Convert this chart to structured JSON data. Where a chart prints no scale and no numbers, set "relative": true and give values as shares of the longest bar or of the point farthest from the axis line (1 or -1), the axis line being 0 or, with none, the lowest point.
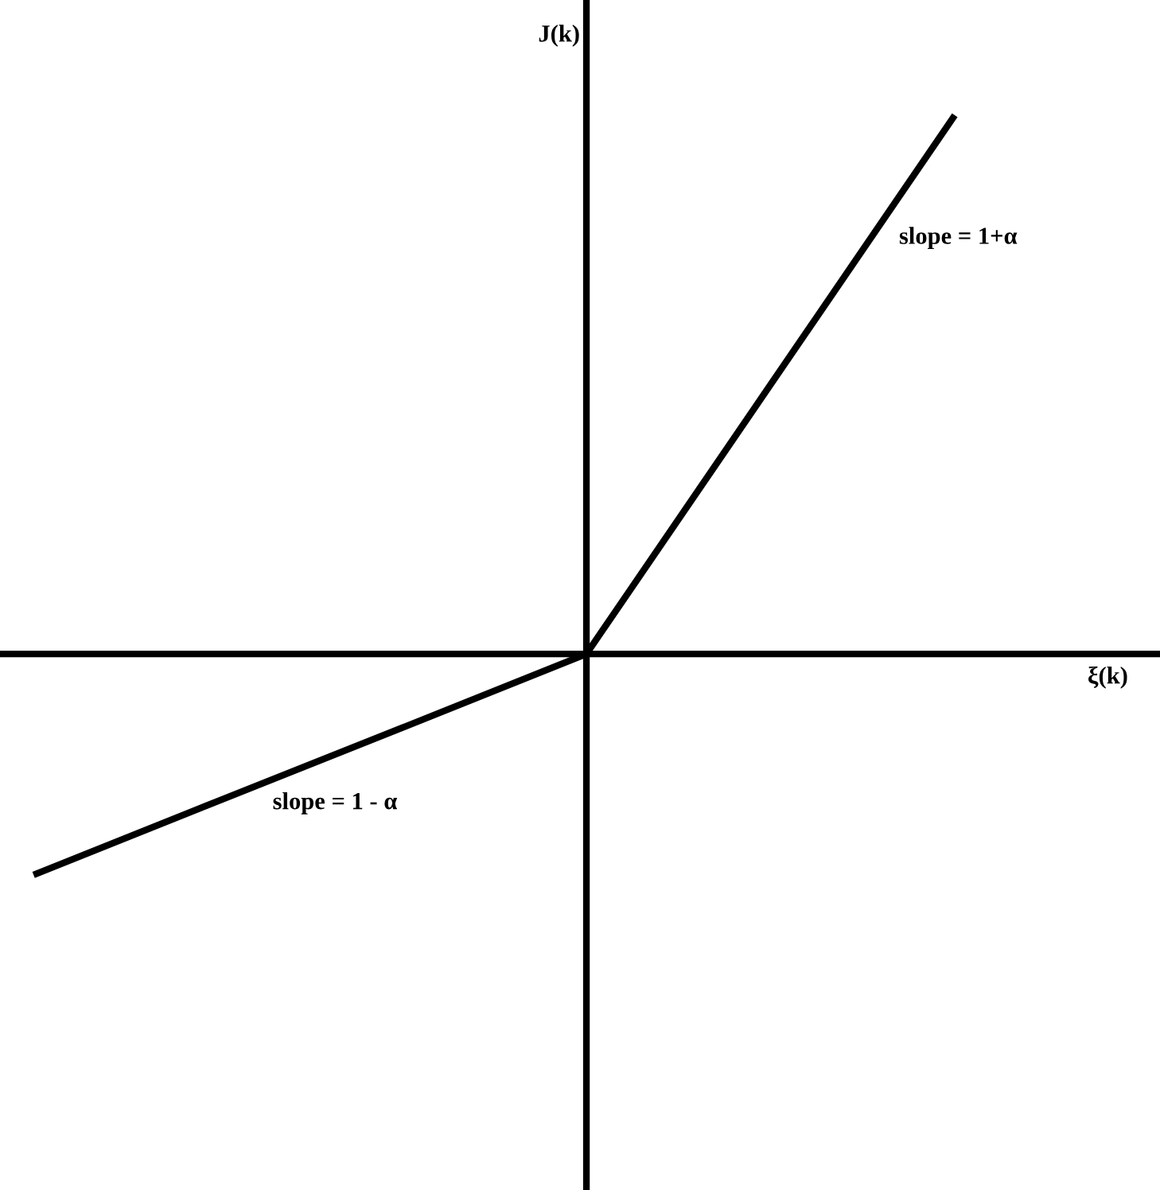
{
  "chart_data": {
    "type": "line",
    "relative": true,
    "xlabel": "ξ(k)",
    "ylabel": "J(k)",
    "categories": [
      null,
      null,
      null,
      null,
      null,
      null
    ],
    "series": [
      {
        "color": "#000000",
        "values": [
          -0.41,
          -0.273,
          -0.137,
          0,
          0.5,
          1
        ]
      }
    ],
    "annotations": [
      "slope = 1+α",
      "slope = 1 - α"
    ],
    "marker": "none",
    "line_style": "solid"
  }
}
